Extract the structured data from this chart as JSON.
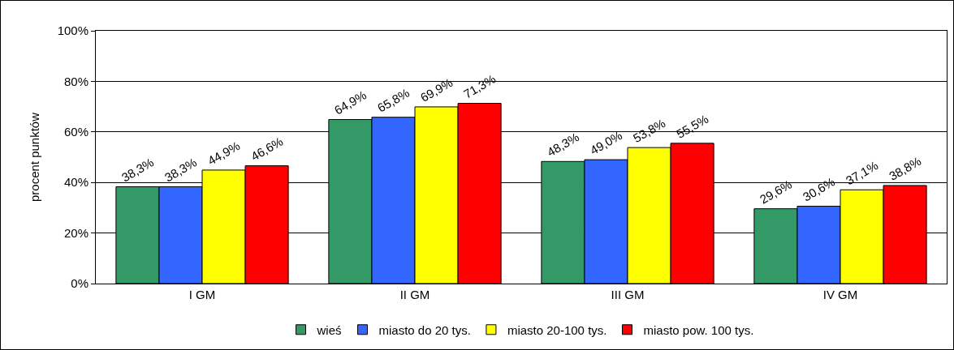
{
  "chart_data": {
    "type": "bar",
    "ylabel": "procent punktów",
    "categories": [
      "I GM",
      "II GM",
      "III GM",
      "IV GM"
    ],
    "series": [
      {
        "name": "wieś",
        "color": "#339966",
        "values": [
          38.3,
          64.9,
          48.3,
          29.6
        ],
        "value_labels": [
          "38,3%",
          "64,9%",
          "48,3%",
          "29,6%"
        ]
      },
      {
        "name": "miasto do 20 tys.",
        "color": "#3366ff",
        "values": [
          38.3,
          65.8,
          49.0,
          30.6
        ],
        "value_labels": [
          "38,3%",
          "65,8%",
          "49,0%",
          "30,6%"
        ]
      },
      {
        "name": "miasto 20-100 tys.",
        "color": "#ffff00",
        "values": [
          44.9,
          69.9,
          53.8,
          37.1
        ],
        "value_labels": [
          "44,9%",
          "69,9%",
          "53,8%",
          "37,1%"
        ]
      },
      {
        "name": "miasto pow. 100 tys.",
        "color": "#ff0000",
        "values": [
          46.6,
          71.3,
          55.5,
          38.8
        ],
        "value_labels": [
          "46,6%",
          "71,3%",
          "55,5%",
          "38,8%"
        ]
      }
    ],
    "ylim": [
      0,
      100
    ],
    "yticks": [
      {
        "value": 0,
        "label": "0%"
      },
      {
        "value": 20,
        "label": "20%"
      },
      {
        "value": 40,
        "label": "40%"
      },
      {
        "value": 60,
        "label": "60%"
      },
      {
        "value": 80,
        "label": "80%"
      },
      {
        "value": 100,
        "label": "100%"
      }
    ],
    "grid": "y",
    "legend": "bottom"
  }
}
